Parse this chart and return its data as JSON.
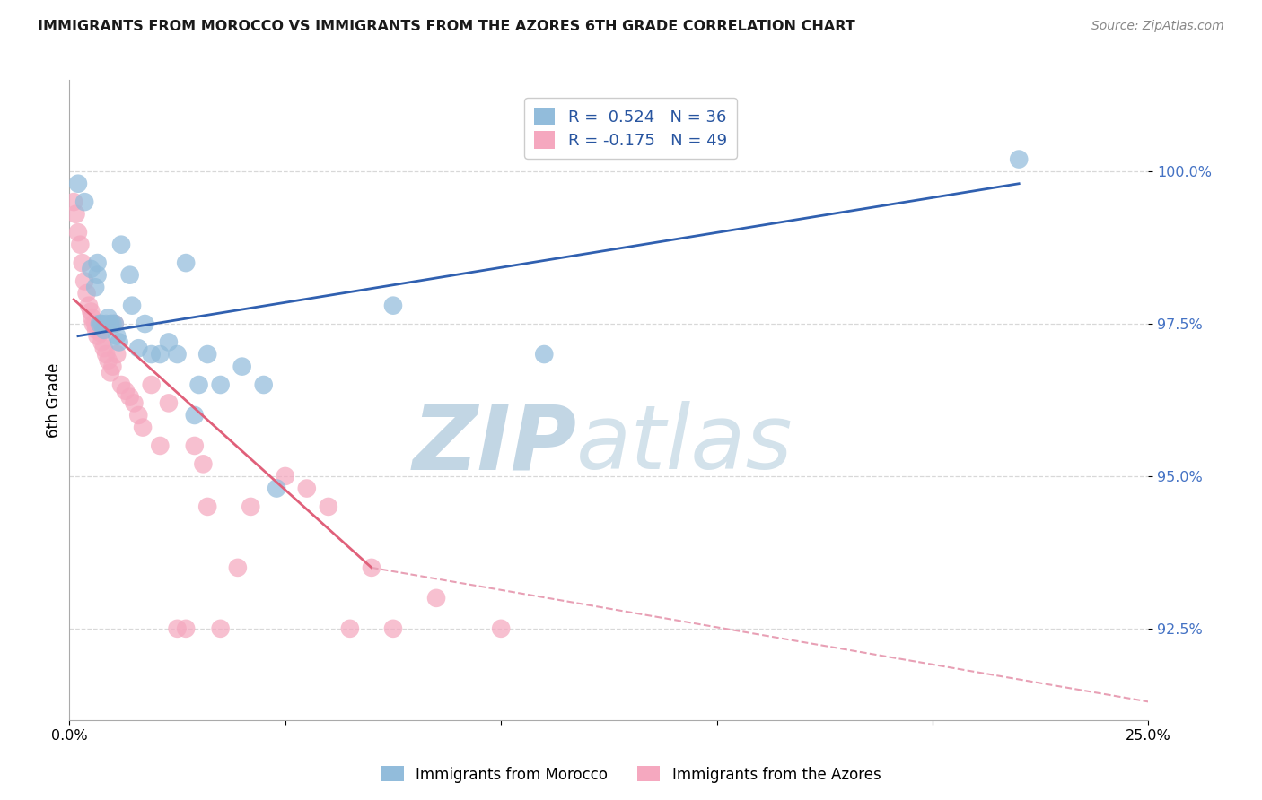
{
  "title": "IMMIGRANTS FROM MOROCCO VS IMMIGRANTS FROM THE AZORES 6TH GRADE CORRELATION CHART",
  "source": "Source: ZipAtlas.com",
  "ylabel": "6th Grade",
  "y_ticks": [
    92.5,
    95.0,
    97.5,
    100.0
  ],
  "y_tick_labels": [
    "92.5%",
    "95.0%",
    "97.5%",
    "100.0%"
  ],
  "xlim": [
    0.0,
    25.0
  ],
  "ylim": [
    91.0,
    101.5
  ],
  "legend_line1": "R =  0.524   N = 36",
  "legend_line2": "R = -0.175   N = 49",
  "legend_label_blue": "Immigrants from Morocco",
  "legend_label_pink": "Immigrants from the Azores",
  "blue_color": "#92bcdb",
  "pink_color": "#f5a8bf",
  "blue_line_color": "#3060b0",
  "pink_line_color": "#e0607a",
  "pink_dash_color": "#e8a0b5",
  "background_color": "#ffffff",
  "grid_color": "#d8d8d8",
  "title_color": "#1a1a1a",
  "source_color": "#888888",
  "right_tick_color": "#4472c4",
  "morocco_x": [
    0.2,
    0.35,
    0.5,
    0.6,
    0.65,
    0.65,
    0.7,
    0.75,
    0.8,
    0.85,
    0.9,
    0.95,
    1.0,
    1.05,
    1.1,
    1.15,
    1.2,
    1.4,
    1.45,
    1.6,
    1.75,
    1.9,
    2.1,
    2.3,
    2.5,
    2.7,
    2.9,
    3.0,
    3.2,
    3.5,
    4.0,
    4.5,
    4.8,
    7.5,
    11.0,
    22.0
  ],
  "morocco_y": [
    99.8,
    99.5,
    98.4,
    98.1,
    98.3,
    98.5,
    97.5,
    97.5,
    97.4,
    97.5,
    97.6,
    97.5,
    97.5,
    97.5,
    97.3,
    97.2,
    98.8,
    98.3,
    97.8,
    97.1,
    97.5,
    97.0,
    97.0,
    97.2,
    97.0,
    98.5,
    96.0,
    96.5,
    97.0,
    96.5,
    96.8,
    96.5,
    94.8,
    97.8,
    97.0,
    100.2
  ],
  "azores_x": [
    0.1,
    0.15,
    0.2,
    0.25,
    0.3,
    0.35,
    0.4,
    0.45,
    0.5,
    0.52,
    0.55,
    0.6,
    0.62,
    0.65,
    0.7,
    0.72,
    0.75,
    0.8,
    0.85,
    0.9,
    0.95,
    1.0,
    1.05,
    1.1,
    1.2,
    1.3,
    1.4,
    1.5,
    1.6,
    1.7,
    1.9,
    2.1,
    2.3,
    2.5,
    2.7,
    2.9,
    3.1,
    3.2,
    3.5,
    3.9,
    4.2,
    5.0,
    5.5,
    6.0,
    6.5,
    7.0,
    7.5,
    8.5,
    10.0
  ],
  "azores_y": [
    99.5,
    99.3,
    99.0,
    98.8,
    98.5,
    98.2,
    98.0,
    97.8,
    97.7,
    97.6,
    97.5,
    97.5,
    97.4,
    97.3,
    97.4,
    97.35,
    97.2,
    97.1,
    97.0,
    96.9,
    96.7,
    96.8,
    97.5,
    97.0,
    96.5,
    96.4,
    96.3,
    96.2,
    96.0,
    95.8,
    96.5,
    95.5,
    96.2,
    92.5,
    92.5,
    95.5,
    95.2,
    94.5,
    92.5,
    93.5,
    94.5,
    95.0,
    94.8,
    94.5,
    92.5,
    93.5,
    92.5,
    93.0,
    92.5
  ],
  "blue_line_x0": 0.2,
  "blue_line_x1": 22.0,
  "blue_line_y0": 97.3,
  "blue_line_y1": 99.8,
  "pink_line_solid_x0": 0.1,
  "pink_line_solid_x1": 7.0,
  "pink_line_solid_y0": 97.9,
  "pink_line_solid_y1": 93.5,
  "pink_line_dash_x0": 7.0,
  "pink_line_dash_x1": 25.0,
  "pink_line_dash_y0": 93.5,
  "pink_line_dash_y1": 91.3
}
